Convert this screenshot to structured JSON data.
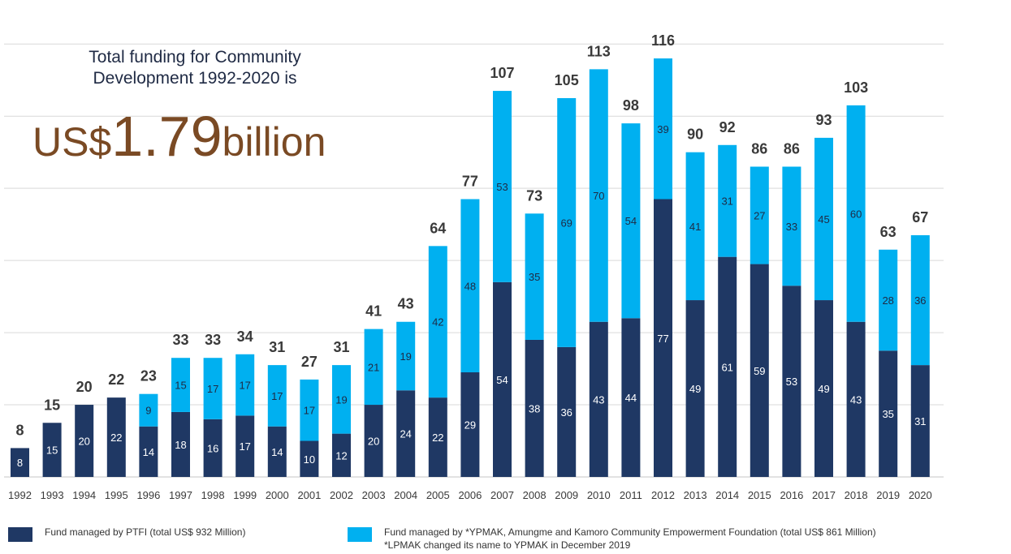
{
  "headline": {
    "line1": "Total funding for Community",
    "line2": "Development 1992-2020 is",
    "currency": "US$",
    "amount": "1.79",
    "unit": "billion"
  },
  "legend": {
    "ptfi": "Fund managed by PTFI (total US$ 932 Million)",
    "ypmak": "Fund managed by *YPMAK, Amungme and Kamoro Community Empowerment Foundation  (total US$ 861 Million)",
    "note": "*LPMAK changed its name to YPMAK in December 2019"
  },
  "colors": {
    "ptfi": "#1f3864",
    "ypmak": "#00b0f0",
    "amount": "#7a4a24",
    "grid": "#d9d9d9"
  },
  "chart_data": {
    "type": "bar",
    "stacked": true,
    "categories": [
      "1992",
      "1993",
      "1994",
      "1995",
      "1996",
      "1997",
      "1998",
      "1999",
      "2000",
      "2001",
      "2002",
      "2003",
      "2004",
      "2005",
      "2006",
      "2007",
      "2008",
      "2009",
      "2010",
      "2011",
      "2012",
      "2013",
      "2014",
      "2015",
      "2016",
      "2017",
      "2018",
      "2019",
      "2020"
    ],
    "series": [
      {
        "name": "Fund managed by PTFI (total US$ 932 Million)",
        "values": [
          8,
          15,
          20,
          22,
          14,
          18,
          16,
          17,
          14,
          10,
          12,
          20,
          24,
          22,
          29,
          54,
          38,
          36,
          43,
          44,
          77,
          49,
          61,
          59,
          53,
          49,
          43,
          35,
          31
        ]
      },
      {
        "name": "Fund managed by *YPMAK, Amungme and Kamoro Community Empowerment Foundation  (total US$ 861 Million)",
        "values": [
          0,
          0,
          0,
          0,
          9,
          15,
          17,
          17,
          17,
          17,
          19,
          21,
          19,
          42,
          48,
          53,
          35,
          69,
          70,
          54,
          39,
          41,
          31,
          27,
          33,
          45,
          60,
          28,
          36
        ]
      }
    ],
    "totals": [
      8,
      15,
      20,
      22,
      23,
      33,
      33,
      34,
      31,
      27,
      31,
      41,
      43,
      64,
      77,
      107,
      73,
      105,
      113,
      98,
      116,
      90,
      92,
      86,
      86,
      93,
      103,
      63,
      67
    ],
    "ylim": [
      0,
      125
    ],
    "grid": true,
    "legend_position": "bottom"
  }
}
